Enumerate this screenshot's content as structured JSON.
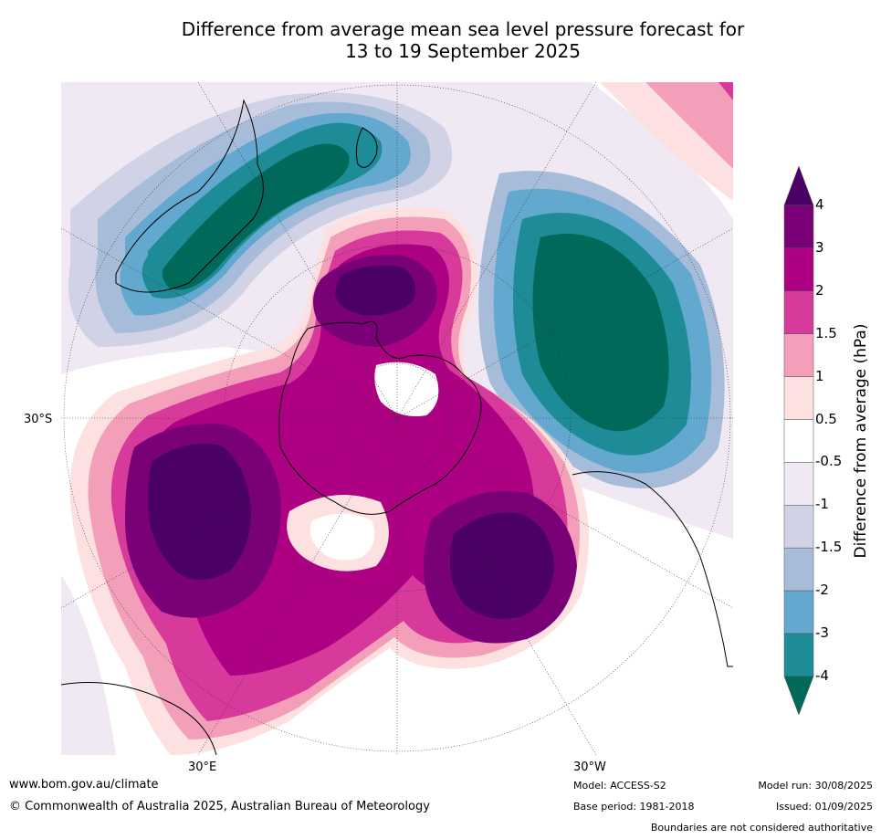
{
  "title_line1": "Difference from average mean sea level pressure forecast for",
  "title_line2": "13 to 19 September 2025",
  "map_labels": {
    "lat": "30°S",
    "lon_east": "30°E",
    "lon_west": "30°W"
  },
  "colorbar": {
    "title": "Difference from average (hPa)",
    "ticks": [
      "4",
      "3",
      "2",
      "1.5",
      "1",
      "0.5",
      "-0.5",
      "-1",
      "-1.5",
      "-2",
      "-3",
      "-4"
    ],
    "colors": [
      "#4a0064",
      "#7a0078",
      "#ae0082",
      "#d83a9b",
      "#f49fb9",
      "#fde0e0",
      "#ffffff",
      "#f0e9f3",
      "#d1d2e6",
      "#a6bcd9",
      "#63a8cf",
      "#1e8c96",
      "#00695a"
    ]
  },
  "footer": {
    "website": "www.bom.gov.au/climate",
    "copyright": "© Commonwealth of Australia 2025, Australian Bureau of Meteorology",
    "model": "Model: ACCESS-S2",
    "base_period": "Base period: 1981-2018",
    "model_run": "Model run: 30/08/2025",
    "issued": "Issued: 01/09/2025",
    "disclaimer": "Boundaries are not considered authoritative"
  }
}
